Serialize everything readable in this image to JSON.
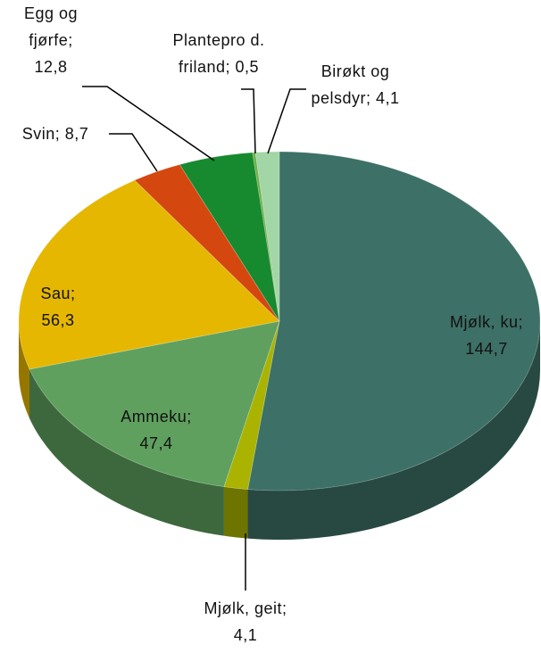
{
  "chart_data": {
    "type": "pie3d",
    "categories": [
      "Mjølk, ku",
      "Mjølk, geit",
      "Ammeku",
      "Sau",
      "Svin",
      "Egg og fjørfe",
      "Plantepro d. friland",
      "Birøkt og pelsdyr"
    ],
    "values": [
      144.7,
      4.1,
      47.4,
      56.3,
      8.7,
      12.8,
      0.5,
      4.1
    ],
    "value_labels": [
      "144,7",
      "4,1",
      "47,4",
      "56,3",
      "8,7",
      "12,8",
      "0,5",
      "4,1"
    ],
    "label_separator": ";",
    "colors": [
      "#3d7066",
      "#a9b300",
      "#5fa05f",
      "#e5b700",
      "#d4470f",
      "#17892e",
      "#6fb04a",
      "#a3d6a6"
    ]
  }
}
